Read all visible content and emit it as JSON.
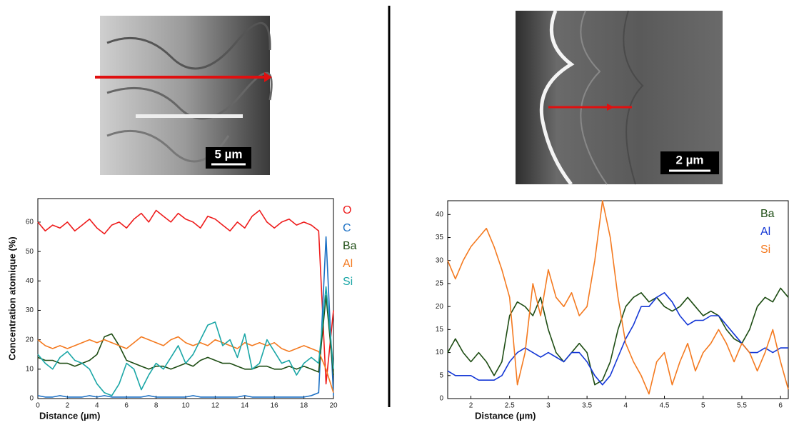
{
  "figures": [
    {
      "scale_bar": "5 µm"
    },
    {
      "scale_bar": "2 µm"
    }
  ],
  "chart_data": [
    {
      "type": "line",
      "xlabel": "Distance (µm)",
      "ylabel": "Concentration atomique (%)",
      "x": [
        0,
        0.5,
        1,
        1.5,
        2,
        2.5,
        3,
        3.5,
        4,
        4.5,
        5,
        5.5,
        6,
        6.5,
        7,
        7.5,
        8,
        8.5,
        9,
        9.5,
        10,
        10.5,
        11,
        11.5,
        12,
        12.5,
        13,
        13.5,
        14,
        14.5,
        15,
        15.5,
        16,
        16.5,
        17,
        17.5,
        18,
        18.5,
        19,
        19.5,
        20
      ],
      "xlim": [
        0,
        20
      ],
      "xticks": [
        0,
        2,
        4,
        6,
        8,
        10,
        12,
        14,
        16,
        18,
        20
      ],
      "ylim": [
        0,
        68
      ],
      "yticks": [
        0,
        10,
        20,
        30,
        40,
        50,
        60
      ],
      "series": [
        {
          "name": "O",
          "color": "#ee1c1c",
          "values": [
            60,
            57,
            59,
            58,
            60,
            57,
            59,
            61,
            58,
            56,
            59,
            60,
            58,
            61,
            63,
            60,
            64,
            62,
            60,
            63,
            61,
            60,
            58,
            62,
            61,
            59,
            57,
            60,
            58,
            62,
            64,
            60,
            58,
            60,
            61,
            59,
            60,
            59,
            57,
            5,
            30
          ]
        },
        {
          "name": "C",
          "color": "#1a6fc4",
          "values": [
            1,
            0.5,
            0.5,
            1,
            0.5,
            0.5,
            0.5,
            1,
            0.5,
            1,
            0.5,
            0.5,
            0.5,
            0.5,
            0.5,
            1,
            0.5,
            0.5,
            0.5,
            0.5,
            0.5,
            1,
            0.5,
            0.5,
            0.5,
            0.5,
            0.5,
            0.5,
            1,
            0.5,
            0.5,
            0.5,
            0.5,
            0.5,
            0.5,
            0.5,
            0.5,
            1,
            2,
            55,
            1
          ]
        },
        {
          "name": "Ba",
          "color": "#1e4d14",
          "values": [
            14,
            13,
            13,
            12,
            12,
            11,
            12,
            13,
            15,
            21,
            22,
            18,
            13,
            12,
            11,
            10,
            11,
            11,
            10,
            11,
            12,
            11,
            13,
            14,
            13,
            12,
            12,
            11,
            10,
            10,
            11,
            11,
            10,
            10,
            11,
            10,
            11,
            10,
            9,
            35,
            8
          ]
        },
        {
          "name": "Al",
          "color": "#f47a20",
          "values": [
            20,
            18,
            17,
            18,
            17,
            18,
            19,
            20,
            19,
            20,
            19,
            18,
            17,
            19,
            21,
            20,
            19,
            18,
            20,
            21,
            19,
            18,
            19,
            18,
            20,
            19,
            18,
            17,
            19,
            18,
            19,
            18,
            19,
            17,
            16,
            17,
            18,
            17,
            16,
            10,
            2
          ]
        },
        {
          "name": "Si",
          "color": "#1aa6a6",
          "values": [
            15,
            12,
            10,
            14,
            16,
            13,
            12,
            10,
            5,
            2,
            1,
            5,
            12,
            10,
            3,
            8,
            12,
            10,
            14,
            18,
            12,
            15,
            20,
            25,
            26,
            18,
            20,
            14,
            22,
            10,
            12,
            20,
            16,
            12,
            13,
            8,
            12,
            14,
            12,
            38,
            10
          ]
        }
      ]
    },
    {
      "type": "line",
      "xlabel": "Distance (µm)",
      "x": [
        1.7,
        1.8,
        1.9,
        2.0,
        2.1,
        2.2,
        2.3,
        2.4,
        2.5,
        2.6,
        2.7,
        2.8,
        2.9,
        3.0,
        3.1,
        3.2,
        3.3,
        3.4,
        3.5,
        3.6,
        3.7,
        3.8,
        3.9,
        4.0,
        4.1,
        4.2,
        4.3,
        4.4,
        4.5,
        4.6,
        4.7,
        4.8,
        4.9,
        5.0,
        5.1,
        5.2,
        5.3,
        5.4,
        5.5,
        5.6,
        5.7,
        5.8,
        5.9,
        6.0,
        6.1
      ],
      "xlim": [
        1.7,
        6.1
      ],
      "xticks": [
        2,
        2.5,
        3,
        3.5,
        4,
        4.5,
        5,
        5.5,
        6
      ],
      "ylim": [
        0,
        43
      ],
      "yticks": [
        0,
        5,
        10,
        15,
        20,
        25,
        30,
        35,
        40
      ],
      "series": [
        {
          "name": "Ba",
          "color": "#1e4d14",
          "values": [
            10,
            13,
            10,
            8,
            10,
            8,
            5,
            8,
            18,
            21,
            20,
            18,
            22,
            15,
            10,
            8,
            10,
            12,
            10,
            3,
            4,
            8,
            15,
            20,
            22,
            23,
            21,
            22,
            20,
            19,
            20,
            22,
            20,
            18,
            19,
            18,
            15,
            13,
            12,
            15,
            20,
            22,
            21,
            24,
            22
          ]
        },
        {
          "name": "Al",
          "color": "#1538d6",
          "values": [
            6,
            5,
            5,
            5,
            4,
            4,
            4,
            5,
            8,
            10,
            11,
            10,
            9,
            10,
            9,
            8,
            10,
            10,
            8,
            5,
            3,
            5,
            9,
            13,
            16,
            20,
            20,
            22,
            23,
            21,
            18,
            16,
            17,
            17,
            18,
            18,
            16,
            14,
            12,
            10,
            10,
            11,
            10,
            11,
            11
          ]
        },
        {
          "name": "Si",
          "color": "#f47a20",
          "values": [
            30,
            26,
            30,
            33,
            35,
            37,
            33,
            28,
            22,
            3,
            10,
            25,
            18,
            28,
            22,
            20,
            23,
            18,
            20,
            30,
            43,
            35,
            22,
            12,
            8,
            5,
            1,
            8,
            10,
            3,
            8,
            12,
            6,
            10,
            12,
            15,
            12,
            8,
            12,
            10,
            6,
            10,
            15,
            8,
            2
          ]
        }
      ]
    }
  ]
}
